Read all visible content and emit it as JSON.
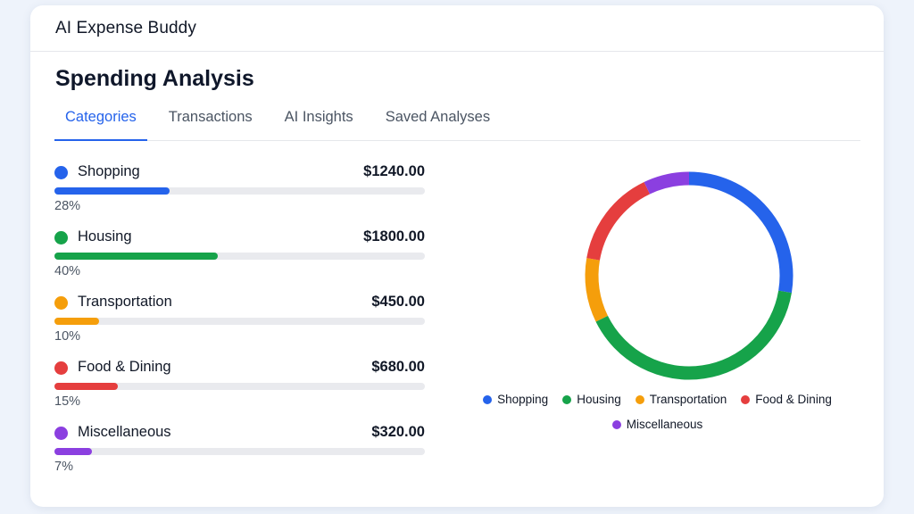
{
  "app": {
    "title": "AI Expense Buddy"
  },
  "page": {
    "title": "Spending Analysis"
  },
  "tabs": [
    {
      "label": "Categories",
      "active": true
    },
    {
      "label": "Transactions",
      "active": false
    },
    {
      "label": "AI Insights",
      "active": false
    },
    {
      "label": "Saved Analyses",
      "active": false
    }
  ],
  "categories": [
    {
      "name": "Shopping",
      "amount": "$1240.00",
      "percent": "28%",
      "fill": 0.31,
      "color": "#2563eb"
    },
    {
      "name": "Housing",
      "amount": "$1800.00",
      "percent": "40%",
      "fill": 0.44,
      "color": "#16a34a"
    },
    {
      "name": "Transportation",
      "amount": "$450.00",
      "percent": "10%",
      "fill": 0.12,
      "color": "#f59e0b"
    },
    {
      "name": "Food & Dining",
      "amount": "$680.00",
      "percent": "15%",
      "fill": 0.17,
      "color": "#e53e3e"
    },
    {
      "name": "Miscellaneous",
      "amount": "$320.00",
      "percent": "7%",
      "fill": 0.1,
      "color": "#8b3fe0"
    }
  ],
  "chart_data": {
    "type": "pie",
    "style": "donut",
    "categories": [
      "Shopping",
      "Housing",
      "Transportation",
      "Food & Dining",
      "Miscellaneous"
    ],
    "values": [
      1240,
      1800,
      450,
      680,
      320
    ],
    "colors": [
      "#2563eb",
      "#16a34a",
      "#f59e0b",
      "#e53e3e",
      "#8b3fe0"
    ],
    "legend": "bottom"
  }
}
